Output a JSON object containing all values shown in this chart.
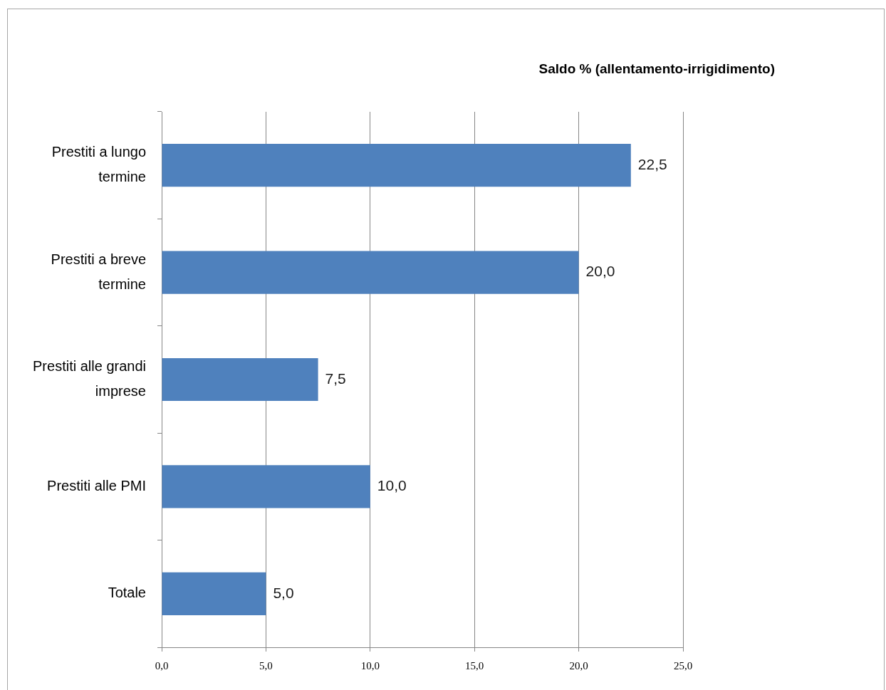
{
  "chart_data": {
    "type": "bar",
    "title": "Saldo % (allentamento-irrigidimento)",
    "orientation": "horizontal",
    "categories": [
      "Prestiti a lungo termine",
      "Prestiti a breve termine",
      "Prestiti alle grandi imprese",
      "Prestiti alle PMI",
      "Totale"
    ],
    "values": [
      22.5,
      20.0,
      7.5,
      10.0,
      5.0
    ],
    "value_labels": [
      "22,5",
      "20,0",
      "7,5",
      "10,0",
      "5,0"
    ],
    "color": "#4f81bd",
    "xlim": [
      0,
      25
    ],
    "xticks": [
      {
        "value": 0,
        "label": "0,0"
      },
      {
        "value": 5,
        "label": "5,0"
      },
      {
        "value": 10,
        "label": "10,0"
      },
      {
        "value": 15,
        "label": "15,0"
      },
      {
        "value": 20,
        "label": "20,0"
      },
      {
        "value": 25,
        "label": "25,0"
      }
    ],
    "grid": "x"
  }
}
